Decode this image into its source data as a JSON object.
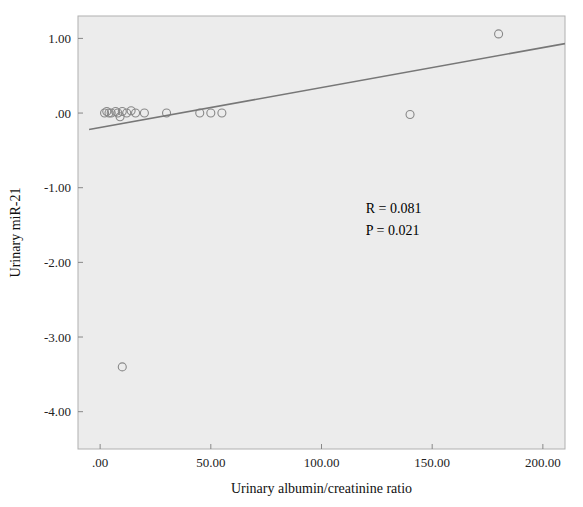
{
  "chart_data": {
    "type": "scatter",
    "x_label": "Urinary albumin/creatinine ratio",
    "y_label": "Urinary miR-21",
    "series": [
      {
        "type": "scatter",
        "marker": "circle-open",
        "color": "#888888",
        "x": [
          2,
          3,
          4,
          5,
          7,
          8,
          9,
          10,
          12,
          14,
          16,
          20,
          30,
          45,
          50,
          55,
          140,
          180
        ],
        "values": [
          0.0,
          0.02,
          0.0,
          0.0,
          0.02,
          0.0,
          -0.05,
          0.02,
          0.0,
          0.03,
          0.0,
          0.0,
          0.0,
          0.0,
          0.0,
          0.0,
          -0.02,
          1.06
        ]
      },
      {
        "type": "scatter",
        "marker": "circle-open",
        "color": "#888888",
        "x": [
          10
        ],
        "values": [
          -3.4
        ]
      },
      {
        "type": "line",
        "line_style": "solid",
        "color": "#777777",
        "x": [
          -5,
          210
        ],
        "values": [
          -0.22,
          0.93
        ]
      }
    ],
    "annotations": [
      {
        "text": "R = 0.081\nP = 0.021",
        "x": 120,
        "y": -1.15
      }
    ],
    "xlim": [
      -10,
      210
    ],
    "ylim": [
      -4.5,
      1.3
    ],
    "xticks": [
      {
        "value": 0,
        "label": ".00"
      },
      {
        "value": 50,
        "label": "50.00"
      },
      {
        "value": 100,
        "label": "100.00"
      },
      {
        "value": 150,
        "label": "150.00"
      },
      {
        "value": 200,
        "label": "200.00"
      }
    ],
    "yticks": [
      {
        "value": 1.0,
        "label": "1.00"
      },
      {
        "value": 0.0,
        "label": ".00"
      },
      {
        "value": -1.0,
        "label": "-1.00"
      },
      {
        "value": -2.0,
        "label": "-2.00"
      },
      {
        "value": -3.0,
        "label": "-3.00"
      },
      {
        "value": -4.0,
        "label": "-4.00"
      }
    ],
    "grid": false
  }
}
